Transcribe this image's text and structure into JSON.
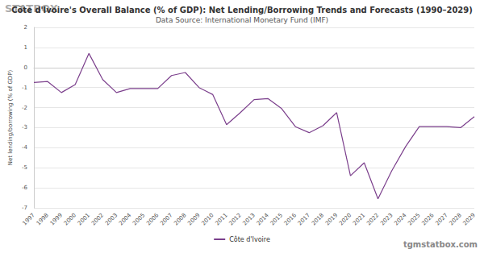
{
  "chart_data": {
    "type": "line",
    "title": "Côte d'Ivoire's Overall Balance (% of GDP): Net Lending/Borrowing Trends and Forecasts (1990–2029)",
    "subtitle": "Data Source: International Monetary Fund (IMF)",
    "y_label": "Net lending/borrowing (% of GDP)",
    "annotations": [
      "STATBOX",
      "tgmstatbox.com"
    ],
    "categories": [
      "1997",
      "1998",
      "1999",
      "2000",
      "2001",
      "2002",
      "2003",
      "2004",
      "2005",
      "2006",
      "2007",
      "2008",
      "2009",
      "2010",
      "2011",
      "2012",
      "2013",
      "2014",
      "2015",
      "2016",
      "2017",
      "2018",
      "2019",
      "2020",
      "2021",
      "2022",
      "2023",
      "2024",
      "2025",
      "2026",
      "2027",
      "2028",
      "2029"
    ],
    "series": [
      {
        "name": "Côte d'Ivoire",
        "color": "#7b3f8c",
        "values": [
          -0.75,
          -0.7,
          -1.25,
          -0.85,
          0.7,
          -0.6,
          -1.25,
          -1.05,
          -1.05,
          -1.05,
          -0.4,
          -0.25,
          -1.0,
          -1.35,
          -2.85,
          -2.25,
          -1.6,
          -1.55,
          -2.05,
          -2.95,
          -3.25,
          -2.9,
          -2.25,
          -5.4,
          -4.75,
          -6.55,
          -5.15,
          -3.95,
          -2.95,
          -2.95,
          -2.95,
          -3.0,
          -2.45
        ]
      }
    ],
    "ylim": [
      -7,
      2
    ],
    "yticks": [
      -7,
      -6,
      -5,
      -4,
      -3,
      -2,
      -1,
      0,
      1,
      2
    ],
    "grid": true,
    "legend": "bottom"
  }
}
